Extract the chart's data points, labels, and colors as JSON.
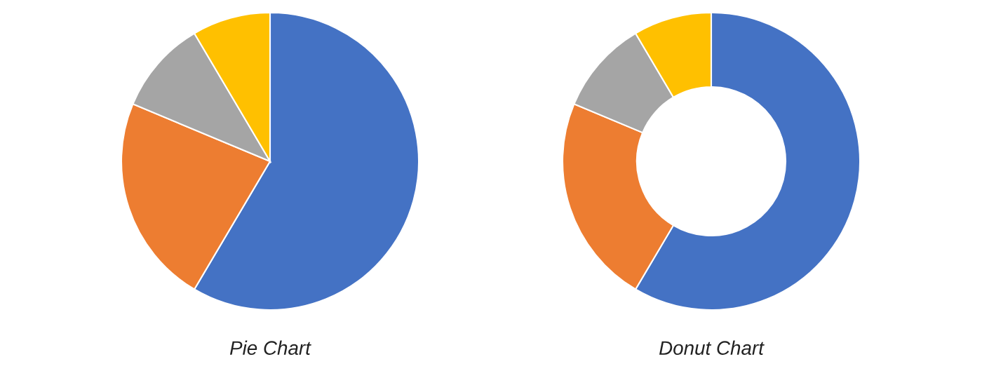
{
  "chart_data": [
    {
      "type": "pie",
      "title": "Pie Chart",
      "categories": [
        null,
        null,
        null,
        null
      ],
      "values": [
        58.5,
        22.8,
        10.2,
        8.5
      ],
      "colors": [
        "#4472c4",
        "#ed7d31",
        "#a5a5a5",
        "#ffc000"
      ]
    },
    {
      "type": "donut",
      "title": "Donut Chart",
      "categories": [
        null,
        null,
        null,
        null
      ],
      "values": [
        58.5,
        22.8,
        10.2,
        8.5
      ],
      "colors": [
        "#4472c4",
        "#ed7d31",
        "#a5a5a5",
        "#ffc000"
      ]
    }
  ]
}
